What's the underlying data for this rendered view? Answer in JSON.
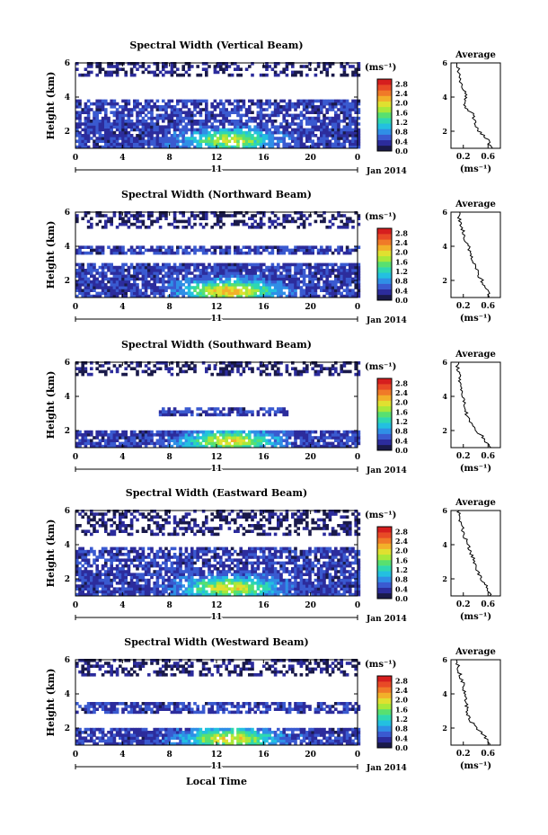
{
  "chart_data": {
    "type": "heatmap",
    "x_axis": {
      "range": [
        0,
        24
      ],
      "ticks": [
        "0",
        "4",
        "8",
        "12",
        "16",
        "20",
        "0"
      ],
      "date_day": "11",
      "date_month_year": "Jan 2014",
      "label_bottom": "Local Time"
    },
    "y_axis": {
      "label": "Height (km)",
      "range": [
        1,
        6
      ],
      "ticks": [
        "2",
        "4",
        "6"
      ]
    },
    "colorbar": {
      "unit": "(ms⁻¹)",
      "ticks": [
        "0.0",
        "0.4",
        "0.8",
        "1.2",
        "1.6",
        "2.0",
        "2.4",
        "2.8"
      ],
      "range": [
        0,
        3.0
      ],
      "colors": [
        "#1a1a4a",
        "#2c2c9c",
        "#3a5ad0",
        "#2f8fe6",
        "#23c0e0",
        "#2fd8b0",
        "#58e070",
        "#a8e83a",
        "#e0e030",
        "#f2b02a",
        "#f07a28",
        "#e84a26",
        "#d61e1e"
      ]
    },
    "profile": {
      "title": "Average",
      "xlabel": "(ms⁻¹)",
      "xticks": [
        "0.2",
        "0.6"
      ],
      "xlim": [
        0,
        0.8
      ],
      "yticks": [
        "2",
        "4",
        "6"
      ],
      "ylim": [
        1,
        6
      ]
    },
    "panels": [
      {
        "title": "Spectral Width (Vertical Beam)",
        "beam": "vertical",
        "layers": [
          [
            3.2,
            3.7,
            0,
            24
          ],
          [
            2.5,
            3.2,
            0,
            24
          ],
          [
            1.0,
            2.5,
            0,
            24
          ],
          [
            5.2,
            6.0,
            0,
            24
          ]
        ],
        "peak": {
          "t": 13,
          "h": 1.4,
          "value": 1.4
        },
        "profile_h": [
          1.0,
          1.5,
          2.0,
          2.5,
          3.0,
          3.5,
          4.0,
          4.5,
          5.0,
          5.5,
          6.0
        ],
        "profile_v": [
          0.65,
          0.6,
          0.45,
          0.4,
          0.35,
          0.22,
          0.25,
          0.2,
          0.15,
          0.12,
          0.1
        ]
      },
      {
        "title": "Spectral Width (Northward Beam)",
        "beam": "northward",
        "layers": [
          [
            3.5,
            4.0,
            0,
            24
          ],
          [
            1.8,
            3.0,
            0,
            24
          ],
          [
            1.0,
            1.8,
            0,
            24
          ],
          [
            5.0,
            6.0,
            0,
            24
          ]
        ],
        "peak": {
          "t": 13,
          "h": 1.3,
          "value": 1.8
        },
        "profile_h": [
          1.0,
          1.5,
          2.0,
          2.5,
          3.0,
          3.5,
          4.0,
          4.5,
          5.0,
          5.5,
          6.0
        ],
        "profile_v": [
          0.62,
          0.58,
          0.5,
          0.42,
          0.38,
          0.3,
          0.28,
          0.22,
          0.18,
          0.14,
          0.12
        ]
      },
      {
        "title": "Spectral Width (Southward Beam)",
        "beam": "southward",
        "layers": [
          [
            1.0,
            2.0,
            0,
            24
          ],
          [
            2.8,
            3.2,
            7,
            18
          ],
          [
            5.2,
            6.0,
            0,
            24
          ]
        ],
        "peak": {
          "t": 13,
          "h": 1.3,
          "value": 1.6
        },
        "profile_h": [
          1.0,
          1.5,
          2.0,
          2.5,
          3.0,
          3.5,
          4.0,
          4.5,
          5.0,
          5.5,
          6.0
        ],
        "profile_v": [
          0.62,
          0.55,
          0.4,
          0.3,
          0.25,
          0.22,
          0.2,
          0.18,
          0.14,
          0.12,
          0.1
        ]
      },
      {
        "title": "Spectral Width (Eastward Beam)",
        "beam": "eastward",
        "layers": [
          [
            3.0,
            3.8,
            0,
            24
          ],
          [
            2.2,
            3.0,
            0,
            24
          ],
          [
            1.0,
            2.2,
            0,
            24
          ],
          [
            4.5,
            6.0,
            0,
            24
          ]
        ],
        "peak": {
          "t": 13,
          "h": 1.4,
          "value": 1.6
        },
        "profile_h": [
          1.0,
          1.5,
          2.0,
          2.5,
          3.0,
          3.5,
          4.0,
          4.5,
          5.0,
          5.5,
          6.0
        ],
        "profile_v": [
          0.65,
          0.6,
          0.48,
          0.42,
          0.38,
          0.32,
          0.28,
          0.22,
          0.18,
          0.14,
          0.12
        ]
      },
      {
        "title": "Spectral Width (Westward Beam)",
        "beam": "westward",
        "layers": [
          [
            2.8,
            3.4,
            0,
            24
          ],
          [
            1.0,
            2.0,
            0,
            24
          ],
          [
            5.0,
            6.0,
            0,
            24
          ]
        ],
        "peak": {
          "t": 13,
          "h": 1.3,
          "value": 1.6
        },
        "profile_h": [
          1.0,
          1.5,
          2.0,
          2.5,
          3.0,
          3.5,
          4.0,
          4.5,
          5.0,
          5.5,
          6.0
        ],
        "profile_v": [
          0.62,
          0.56,
          0.42,
          0.3,
          0.26,
          0.24,
          0.22,
          0.2,
          0.16,
          0.12,
          0.1
        ]
      }
    ]
  }
}
